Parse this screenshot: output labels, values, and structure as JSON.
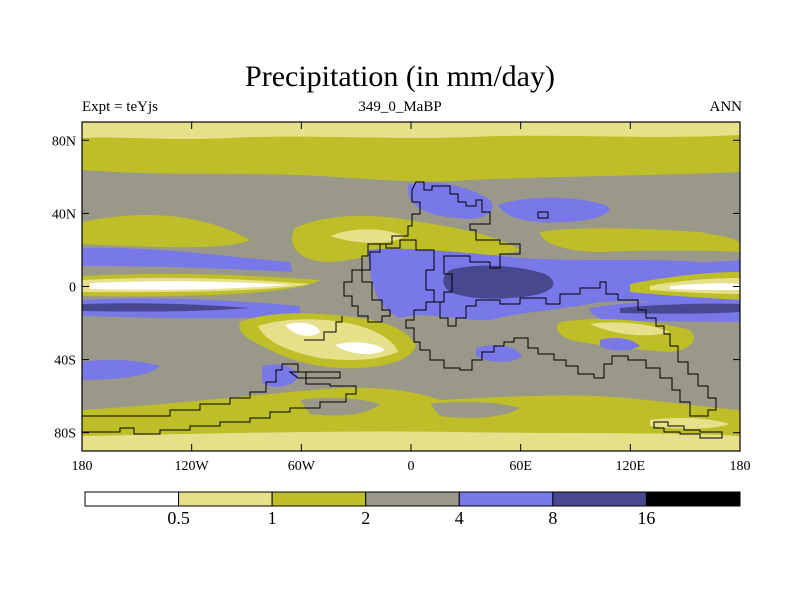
{
  "chart_data": {
    "type": "heatmap",
    "title": "Precipitation (in mm/day)",
    "left_label": "Expt = teYjs",
    "center_label": "349_0_MaBP",
    "right_label": "ANN",
    "x_ticks": [
      {
        "value": -180,
        "label": "180"
      },
      {
        "value": -120,
        "label": "120W"
      },
      {
        "value": -60,
        "label": "60W"
      },
      {
        "value": 0,
        "label": "0"
      },
      {
        "value": 60,
        "label": "60E"
      },
      {
        "value": 120,
        "label": "120E"
      },
      {
        "value": 180,
        "label": "180"
      }
    ],
    "y_ticks": [
      {
        "value": 80,
        "label": "80N"
      },
      {
        "value": 40,
        "label": "40N"
      },
      {
        "value": 0,
        "label": "0"
      },
      {
        "value": -40,
        "label": "40S"
      },
      {
        "value": -80,
        "label": "80S"
      }
    ],
    "xlim": [
      -180,
      180
    ],
    "ylim": [
      -90,
      90
    ],
    "levels": [
      "0.5",
      "1",
      "2",
      "4",
      "8",
      "16"
    ],
    "units": "mm/day",
    "colors": [
      "#ffffff",
      "#e6e08a",
      "#bebe28",
      "#9a9888",
      "#7878e8",
      "#484890",
      "#000000"
    ]
  }
}
